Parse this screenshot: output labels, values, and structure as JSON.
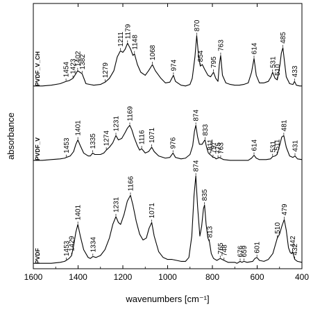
{
  "chart_data": {
    "type": "line",
    "xlabel": "wavenumbers [cm⁻¹]",
    "ylabel": "absorbance",
    "xlim": [
      1600,
      400
    ],
    "x_reversed": true,
    "xticks": [
      1600,
      1400,
      1200,
      1000,
      800,
      600,
      400
    ],
    "yticks": [],
    "grid": false,
    "series": [
      {
        "name": "PVDF_V_CH",
        "color": "#000000",
        "points": [
          [
            1600,
            0.02
          ],
          [
            1560,
            0.02
          ],
          [
            1520,
            0.03
          ],
          [
            1480,
            0.05
          ],
          [
            1454,
            0.08
          ],
          [
            1440,
            0.09
          ],
          [
            1423,
            0.12
          ],
          [
            1410,
            0.18
          ],
          [
            1402,
            0.22
          ],
          [
            1392,
            0.2
          ],
          [
            1382,
            0.18
          ],
          [
            1365,
            0.05
          ],
          [
            1330,
            0.03
          ],
          [
            1300,
            0.04
          ],
          [
            1279,
            0.07
          ],
          [
            1260,
            0.12
          ],
          [
            1240,
            0.22
          ],
          [
            1225,
            0.4
          ],
          [
            1211,
            0.48
          ],
          [
            1200,
            0.46
          ],
          [
            1190,
            0.5
          ],
          [
            1179,
            0.58
          ],
          [
            1165,
            0.5
          ],
          [
            1155,
            0.42
          ],
          [
            1148,
            0.44
          ],
          [
            1135,
            0.3
          ],
          [
            1120,
            0.2
          ],
          [
            1100,
            0.16
          ],
          [
            1085,
            0.22
          ],
          [
            1068,
            0.3
          ],
          [
            1055,
            0.22
          ],
          [
            1030,
            0.12
          ],
          [
            1010,
            0.06
          ],
          [
            990,
            0.07
          ],
          [
            974,
            0.16
          ],
          [
            965,
            0.08
          ],
          [
            940,
            0.03
          ],
          [
            920,
            0.02
          ],
          [
            900,
            0.04
          ],
          [
            890,
            0.12
          ],
          [
            878,
            0.4
          ],
          [
            870,
            0.68
          ],
          [
            862,
            0.42
          ],
          [
            854,
            0.28
          ],
          [
            845,
            0.3
          ],
          [
            835,
            0.24
          ],
          [
            820,
            0.16
          ],
          [
            808,
            0.14
          ],
          [
            795,
            0.2
          ],
          [
            785,
            0.12
          ],
          [
            775,
            0.08
          ],
          [
            769,
            0.3
          ],
          [
            763,
            0.42
          ],
          [
            755,
            0.16
          ],
          [
            740,
            0.06
          ],
          [
            720,
            0.04
          ],
          [
            700,
            0.03
          ],
          [
            680,
            0.03
          ],
          [
            660,
            0.04
          ],
          [
            640,
            0.06
          ],
          [
            625,
            0.2
          ],
          [
            614,
            0.38
          ],
          [
            604,
            0.16
          ],
          [
            590,
            0.06
          ],
          [
            570,
            0.06
          ],
          [
            550,
            0.08
          ],
          [
            538,
            0.14
          ],
          [
            531,
            0.2
          ],
          [
            520,
            0.12
          ],
          [
            510,
            0.1
          ],
          [
            498,
            0.3
          ],
          [
            492,
            0.45
          ],
          [
            485,
            0.52
          ],
          [
            478,
            0.34
          ],
          [
            470,
            0.14
          ],
          [
            455,
            0.05
          ],
          [
            440,
            0.04
          ],
          [
            433,
            0.08
          ],
          [
            425,
            0.03
          ],
          [
            410,
            0.02
          ],
          [
            400,
            0.02
          ]
        ]
      },
      {
        "name": "PVDF_V",
        "color": "#000000",
        "points": [
          [
            1600,
            0.02
          ],
          [
            1560,
            0.02
          ],
          [
            1520,
            0.03
          ],
          [
            1480,
            0.04
          ],
          [
            1460,
            0.05
          ],
          [
            1453,
            0.06
          ],
          [
            1435,
            0.08
          ],
          [
            1420,
            0.14
          ],
          [
            1410,
            0.24
          ],
          [
            1401,
            0.3
          ],
          [
            1390,
            0.22
          ],
          [
            1375,
            0.12
          ],
          [
            1355,
            0.08
          ],
          [
            1345,
            0.08
          ],
          [
            1335,
            0.12
          ],
          [
            1325,
            0.1
          ],
          [
            1300,
            0.1
          ],
          [
            1285,
            0.12
          ],
          [
            1274,
            0.16
          ],
          [
            1260,
            0.2
          ],
          [
            1245,
            0.26
          ],
          [
            1231,
            0.36
          ],
          [
            1220,
            0.3
          ],
          [
            1205,
            0.32
          ],
          [
            1190,
            0.4
          ],
          [
            1180,
            0.46
          ],
          [
            1169,
            0.5
          ],
          [
            1160,
            0.44
          ],
          [
            1150,
            0.34
          ],
          [
            1135,
            0.22
          ],
          [
            1125,
            0.16
          ],
          [
            1116,
            0.18
          ],
          [
            1100,
            0.12
          ],
          [
            1085,
            0.14
          ],
          [
            1071,
            0.2
          ],
          [
            1060,
            0.14
          ],
          [
            1040,
            0.08
          ],
          [
            1010,
            0.05
          ],
          [
            990,
            0.06
          ],
          [
            976,
            0.12
          ],
          [
            965,
            0.06
          ],
          [
            940,
            0.04
          ],
          [
            920,
            0.05
          ],
          [
            900,
            0.1
          ],
          [
            888,
            0.22
          ],
          [
            880,
            0.42
          ],
          [
            874,
            0.5
          ],
          [
            866,
            0.34
          ],
          [
            858,
            0.24
          ],
          [
            846,
            0.24
          ],
          [
            838,
            0.28
          ],
          [
            833,
            0.3
          ],
          [
            826,
            0.2
          ],
          [
            818,
            0.12
          ],
          [
            811,
            0.1
          ],
          [
            803,
            0.08
          ],
          [
            797,
            0.06
          ],
          [
            790,
            0.06
          ],
          [
            784,
            0.04
          ],
          [
            775,
            0.05
          ],
          [
            770,
            0.06
          ],
          [
            763,
            0.05
          ],
          [
            750,
            0.03
          ],
          [
            720,
            0.02
          ],
          [
            700,
            0.02
          ],
          [
            680,
            0.02
          ],
          [
            660,
            0.02
          ],
          [
            640,
            0.02
          ],
          [
            625,
            0.05
          ],
          [
            614,
            0.09
          ],
          [
            604,
            0.05
          ],
          [
            590,
            0.03
          ],
          [
            560,
            0.03
          ],
          [
            540,
            0.04
          ],
          [
            531,
            0.07
          ],
          [
            520,
            0.08
          ],
          [
            511,
            0.1
          ],
          [
            500,
            0.22
          ],
          [
            490,
            0.34
          ],
          [
            481,
            0.36
          ],
          [
            470,
            0.2
          ],
          [
            455,
            0.08
          ],
          [
            440,
            0.06
          ],
          [
            431,
            0.08
          ],
          [
            420,
            0.04
          ],
          [
            400,
            0.03
          ]
        ]
      },
      {
        "name": "PVDF",
        "color": "#000000",
        "points": [
          [
            1600,
            0.02
          ],
          [
            1560,
            0.02
          ],
          [
            1520,
            0.02
          ],
          [
            1480,
            0.03
          ],
          [
            1460,
            0.04
          ],
          [
            1453,
            0.05
          ],
          [
            1440,
            0.07
          ],
          [
            1429,
            0.1
          ],
          [
            1420,
            0.2
          ],
          [
            1410,
            0.34
          ],
          [
            1401,
            0.42
          ],
          [
            1390,
            0.3
          ],
          [
            1375,
            0.16
          ],
          [
            1355,
            0.08
          ],
          [
            1345,
            0.07
          ],
          [
            1334,
            0.09
          ],
          [
            1320,
            0.08
          ],
          [
            1300,
            0.1
          ],
          [
            1280,
            0.16
          ],
          [
            1260,
            0.28
          ],
          [
            1245,
            0.42
          ],
          [
            1231,
            0.5
          ],
          [
            1220,
            0.44
          ],
          [
            1210,
            0.42
          ],
          [
            1195,
            0.52
          ],
          [
            1180,
            0.66
          ],
          [
            1166,
            0.72
          ],
          [
            1155,
            0.62
          ],
          [
            1140,
            0.45
          ],
          [
            1125,
            0.32
          ],
          [
            1110,
            0.26
          ],
          [
            1095,
            0.28
          ],
          [
            1083,
            0.38
          ],
          [
            1071,
            0.44
          ],
          [
            1060,
            0.3
          ],
          [
            1040,
            0.14
          ],
          [
            1020,
            0.08
          ],
          [
            1000,
            0.06
          ],
          [
            980,
            0.06
          ],
          [
            960,
            0.05
          ],
          [
            940,
            0.04
          ],
          [
            920,
            0.04
          ],
          [
            905,
            0.08
          ],
          [
            892,
            0.3
          ],
          [
            882,
            0.72
          ],
          [
            874,
            0.92
          ],
          [
            866,
            0.6
          ],
          [
            856,
            0.3
          ],
          [
            848,
            0.4
          ],
          [
            840,
            0.58
          ],
          [
            835,
            0.62
          ],
          [
            828,
            0.42
          ],
          [
            820,
            0.28
          ],
          [
            813,
            0.24
          ],
          [
            805,
            0.12
          ],
          [
            795,
            0.07
          ],
          [
            780,
            0.05
          ],
          [
            765,
            0.07
          ],
          [
            756,
            0.06
          ],
          [
            748,
            0.05
          ],
          [
            730,
            0.03
          ],
          [
            700,
            0.03
          ],
          [
            690,
            0.02
          ],
          [
            676,
            0.04
          ],
          [
            668,
            0.03
          ],
          [
            659,
            0.04
          ],
          [
            645,
            0.03
          ],
          [
            620,
            0.04
          ],
          [
            610,
            0.07
          ],
          [
            601,
            0.08
          ],
          [
            590,
            0.05
          ],
          [
            570,
            0.04
          ],
          [
            550,
            0.06
          ],
          [
            530,
            0.12
          ],
          [
            520,
            0.2
          ],
          [
            510,
            0.28
          ],
          [
            500,
            0.32
          ],
          [
            490,
            0.4
          ],
          [
            479,
            0.47
          ],
          [
            470,
            0.36
          ],
          [
            460,
            0.18
          ],
          [
            452,
            0.13
          ],
          [
            446,
            0.12
          ],
          [
            442,
            0.14
          ],
          [
            437,
            0.1
          ],
          [
            432,
            0.06
          ],
          [
            420,
            0.04
          ],
          [
            400,
            0.03
          ]
        ]
      }
    ],
    "annotations": {
      "PVDF_V_CH": [
        {
          "x": 1454,
          "text": "1454"
        },
        {
          "x": 1423,
          "text": "1423"
        },
        {
          "x": 1402,
          "text": "1402"
        },
        {
          "x": 1382,
          "text": "1382"
        },
        {
          "x": 1279,
          "text": "1279"
        },
        {
          "x": 1211,
          "text": "1211"
        },
        {
          "x": 1179,
          "text": "1179"
        },
        {
          "x": 1148,
          "text": "1148"
        },
        {
          "x": 1068,
          "text": "1068"
        },
        {
          "x": 974,
          "text": "974"
        },
        {
          "x": 870,
          "text": "870"
        },
        {
          "x": 854,
          "text": "854"
        },
        {
          "x": 795,
          "text": "795"
        },
        {
          "x": 763,
          "text": "763"
        },
        {
          "x": 614,
          "text": "614"
        },
        {
          "x": 531,
          "text": "531"
        },
        {
          "x": 510,
          "text": "510"
        },
        {
          "x": 485,
          "text": "485"
        },
        {
          "x": 433,
          "text": "433"
        }
      ],
      "PVDF_V": [
        {
          "x": 1453,
          "text": "1453"
        },
        {
          "x": 1401,
          "text": "1401"
        },
        {
          "x": 1335,
          "text": "1335"
        },
        {
          "x": 1274,
          "text": "1274"
        },
        {
          "x": 1231,
          "text": "1231"
        },
        {
          "x": 1169,
          "text": "1169"
        },
        {
          "x": 1116,
          "text": "1116"
        },
        {
          "x": 1071,
          "text": "1071"
        },
        {
          "x": 976,
          "text": "976"
        },
        {
          "x": 874,
          "text": "874"
        },
        {
          "x": 833,
          "text": "833"
        },
        {
          "x": 811,
          "text": "811"
        },
        {
          "x": 797,
          "text": "797"
        },
        {
          "x": 775,
          "text": "775"
        },
        {
          "x": 763,
          "text": "763"
        },
        {
          "x": 614,
          "text": "614"
        },
        {
          "x": 531,
          "text": "531"
        },
        {
          "x": 511,
          "text": "511"
        },
        {
          "x": 481,
          "text": "481"
        },
        {
          "x": 431,
          "text": "431"
        }
      ],
      "PVDF": [
        {
          "x": 1453,
          "text": "1453"
        },
        {
          "x": 1429,
          "text": "1429"
        },
        {
          "x": 1401,
          "text": "1401"
        },
        {
          "x": 1334,
          "text": "1334"
        },
        {
          "x": 1231,
          "text": "1231"
        },
        {
          "x": 1166,
          "text": "1166"
        },
        {
          "x": 1071,
          "text": "1071"
        },
        {
          "x": 874,
          "text": "874"
        },
        {
          "x": 835,
          "text": "835"
        },
        {
          "x": 813,
          "text": "813"
        },
        {
          "x": 765,
          "text": "765"
        },
        {
          "x": 748,
          "text": "748"
        },
        {
          "x": 676,
          "text": "676"
        },
        {
          "x": 659,
          "text": "659"
        },
        {
          "x": 601,
          "text": "601"
        },
        {
          "x": 510,
          "text": "510"
        },
        {
          "x": 479,
          "text": "479"
        },
        {
          "x": 442,
          "text": "442"
        },
        {
          "x": 432,
          "text": "432"
        }
      ]
    }
  }
}
